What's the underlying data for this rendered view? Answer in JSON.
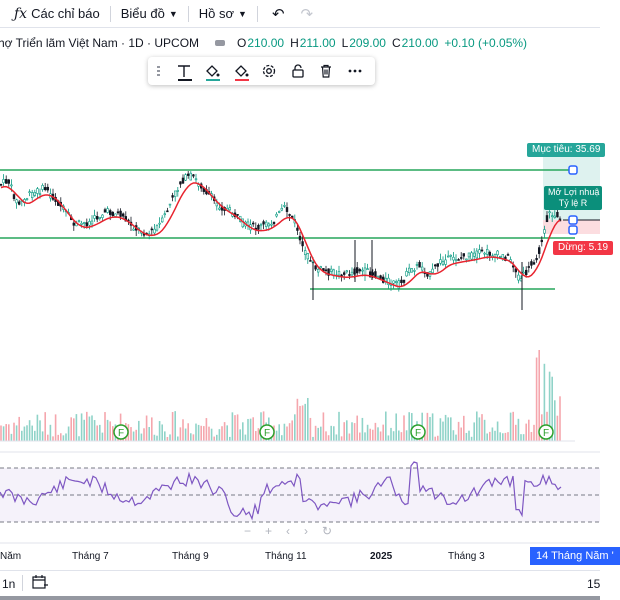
{
  "toolbar": {
    "indicators_label": "Các chỉ báo",
    "chart_label": "Biểu đồ",
    "profile_label": "Hồ sơ"
  },
  "symbol": {
    "title": "hợ Triển lãm Việt Nam · 1D · UPCOM",
    "ohlc": [
      {
        "label": "O",
        "value": "210.00"
      },
      {
        "label": "H",
        "value": "211.00"
      },
      {
        "label": "L",
        "value": "209.00"
      },
      {
        "label": "C",
        "value": "210.00"
      }
    ],
    "change": "+0.10 (+0.05%)"
  },
  "drawing_toolbar": {
    "icons": [
      "text-icon",
      "fill-color-icon",
      "line-color-icon",
      "settings-icon",
      "lock-icon",
      "trash-icon",
      "more-icon"
    ],
    "fill_color": "#26a69a",
    "line_color": "#f23645"
  },
  "position": {
    "target_label": "Mục tiêu: 35.69",
    "profit_label_line1": "Mở Lợi nhuậ",
    "profit_label_line2": "Tỷ lệ R",
    "stop_label": "Dừng: 5.19"
  },
  "time_axis": {
    "labels": [
      "Năm",
      "Tháng 7",
      "Tháng 9",
      "Tháng 11",
      "2025",
      "Tháng 3"
    ],
    "current_date": "14 Tháng Năm '"
  },
  "bottom": {
    "timeframe": "1n",
    "right_label": "15"
  },
  "chart_data": {
    "type": "candlestick",
    "colors": {
      "up": "#089981",
      "down": "#131722",
      "ma": "#e8242f",
      "rsi": "#7e57c2",
      "channel": "#26a65b"
    },
    "markers": [
      "F",
      "F",
      "F",
      "F"
    ]
  }
}
